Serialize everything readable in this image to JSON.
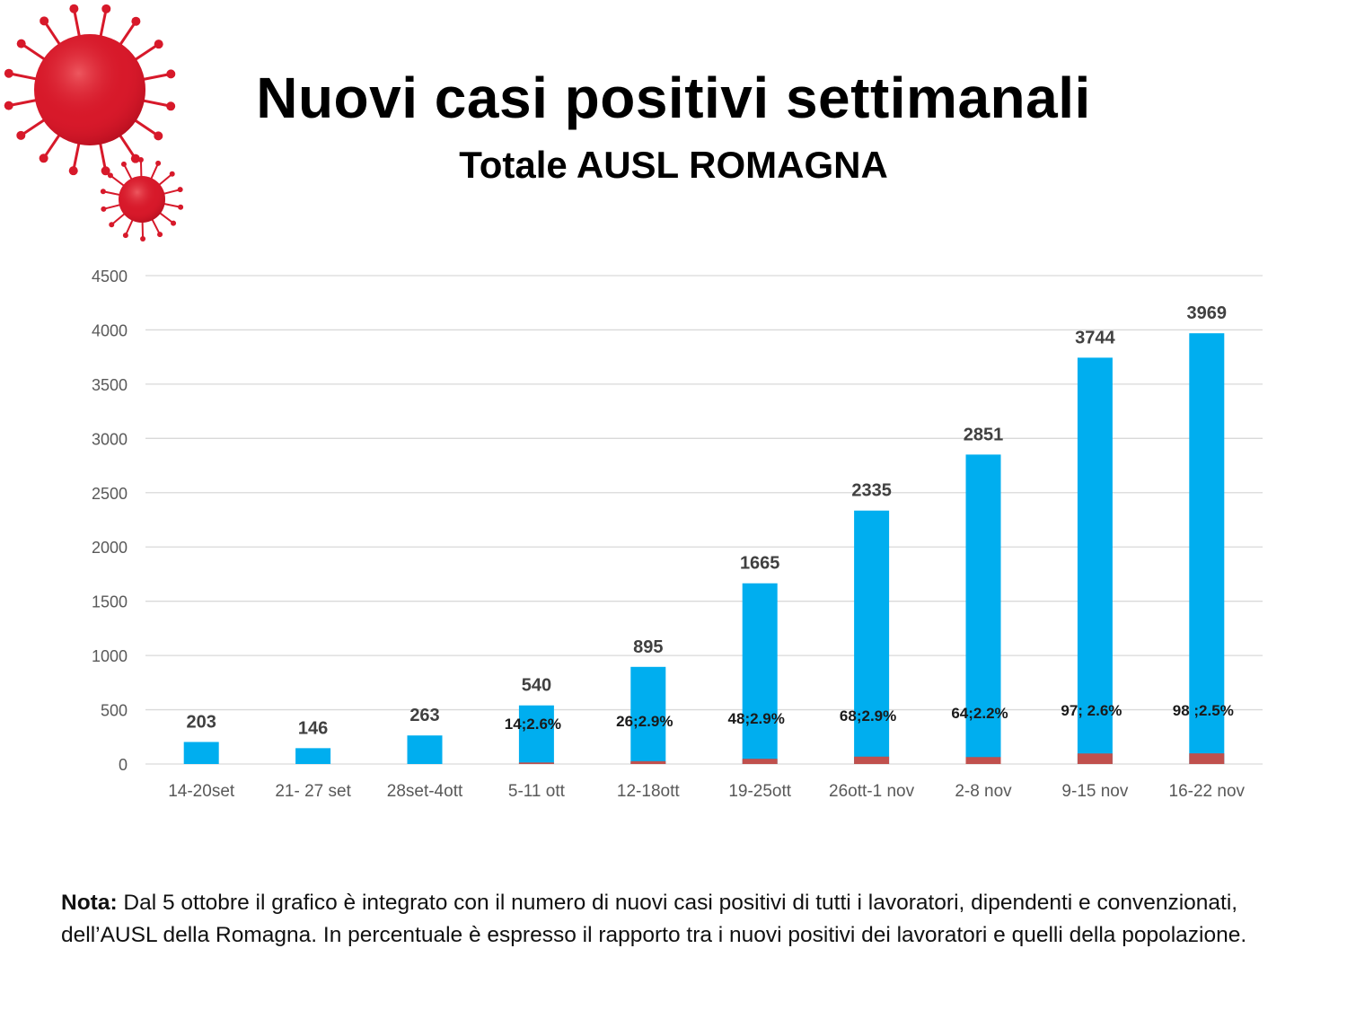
{
  "title": "Nuovi casi positivi settimanali",
  "subtitle": "Totale AUSL ROMAGNA",
  "note": {
    "label": "Nota:",
    "text": "Dal 5 ottobre il grafico è integrato con il numero di nuovi casi positivi di tutti i lavoratori, dipendenti e convenzionati, dell’AUSL della Romagna. In percentuale è espresso il rapporto tra i nuovi positivi dei lavoratori e quelli della popolazione."
  },
  "colors": {
    "population_bar": "#00aeef",
    "worker_bar": "#c0504d",
    "grid": "#d9d9d9",
    "virus": "#d7192a"
  },
  "icons": [
    "virus-large-icon",
    "virus-small-icon"
  ],
  "chart_data": {
    "type": "bar",
    "categories": [
      "14-20set",
      "21- 27 set",
      "28set-4ott",
      "5-11 ott",
      "12-18ott",
      "19-25ott",
      "26ott-1 nov",
      "2-8 nov",
      "9-15 nov",
      "16-22 nov"
    ],
    "series": [
      {
        "values": [
          203,
          146,
          263,
          540,
          895,
          1665,
          2335,
          2851,
          3744,
          3969
        ]
      },
      {
        "values": [
          0,
          0,
          0,
          14,
          26,
          48,
          68,
          64,
          97,
          98
        ]
      }
    ],
    "value_labels": [
      "203",
      "146",
      "263",
      "540",
      "895",
      "1665",
      "2335",
      "2851",
      "3744",
      "3969"
    ],
    "worker_labels": [
      "",
      "",
      "",
      "14;2.6%",
      "26;2.9%",
      "48;2.9%",
      "68;2.9%",
      "64;2.2%",
      "97; 2.6%",
      "98 ;2.5%"
    ],
    "yticks": [
      "0",
      "500",
      "1000",
      "1500",
      "2000",
      "2500",
      "3000",
      "3500",
      "4000",
      "4500"
    ],
    "ylim": [
      0,
      4500
    ],
    "grid": true,
    "legend": "none"
  }
}
